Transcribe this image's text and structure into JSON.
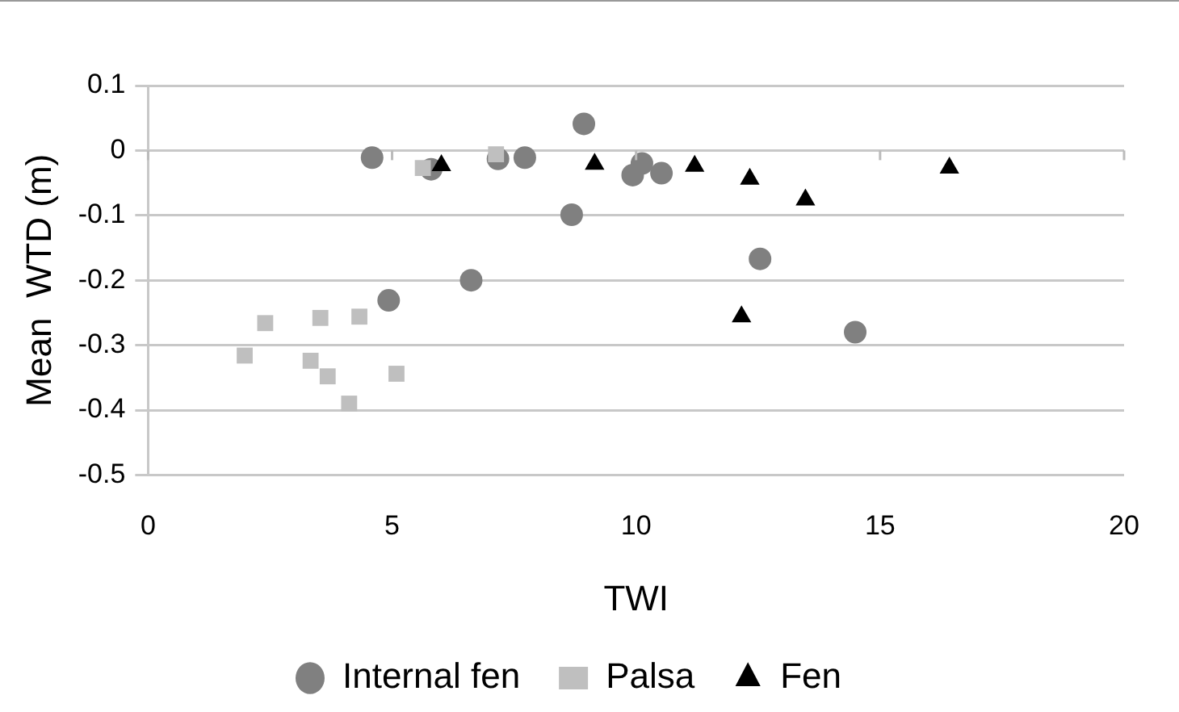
{
  "chart_data": {
    "type": "scatter",
    "xlabel": "TWI",
    "ylabel": "Mean  WTD (m)",
    "xlim": [
      0,
      20
    ],
    "xticks": [
      0,
      5,
      10,
      15,
      20
    ],
    "ylim": [
      -0.5,
      0.1
    ],
    "yticks": [
      -0.5,
      -0.4,
      -0.3,
      -0.2,
      -0.1,
      0,
      0.1
    ],
    "grid": "y",
    "legend": "bottom",
    "series": [
      {
        "name": "Internal fen",
        "color": "#808080",
        "marker": "circle",
        "x": [
          4.59,
          5.8,
          7.17,
          7.72,
          8.93,
          8.68,
          6.62,
          4.93,
          10.12,
          9.93,
          10.52,
          12.54,
          14.49
        ],
        "values": [
          -0.011,
          -0.029,
          -0.013,
          -0.011,
          0.041,
          -0.099,
          -0.2,
          -0.231,
          -0.02,
          -0.038,
          -0.035,
          -0.167,
          -0.28
        ]
      },
      {
        "name": "Palsa",
        "color": "#bfbfbf",
        "marker": "square",
        "x": [
          5.63,
          7.13,
          2.4,
          1.98,
          3.53,
          4.33,
          3.33,
          3.68,
          4.12,
          5.09
        ],
        "values": [
          -0.027,
          -0.006,
          -0.266,
          -0.316,
          -0.258,
          -0.256,
          -0.324,
          -0.348,
          -0.39,
          -0.344
        ]
      },
      {
        "name": "Fen",
        "color": "#000000",
        "marker": "triangle",
        "x": [
          6.01,
          9.15,
          11.2,
          12.33,
          13.47,
          16.42,
          12.16
        ],
        "values": [
          -0.023,
          -0.021,
          -0.024,
          -0.044,
          -0.076,
          -0.027,
          -0.256
        ]
      }
    ]
  }
}
